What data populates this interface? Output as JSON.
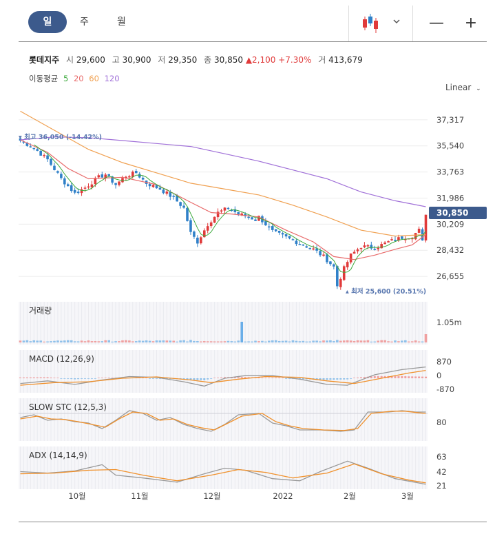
{
  "toolbar": {
    "periods": [
      "일",
      "주",
      "월"
    ],
    "active_period": "일",
    "chart_type_icon": "candlestick-icon",
    "zoom_out_label": "—",
    "zoom_in_label": "+"
  },
  "quote": {
    "name": "롯데지주",
    "open_label": "시",
    "open": "29,600",
    "high_label": "고",
    "high": "30,900",
    "low_label": "저",
    "low": "29,350",
    "close_label": "종",
    "close": "30,850",
    "change": "▲2,100",
    "change_pct": "+7.30%",
    "volume_label": "거",
    "volume": "413,679"
  },
  "moving_average": {
    "label": "이동평균",
    "periods": [
      {
        "value": "5",
        "color": "#3daa3d"
      },
      {
        "value": "20",
        "color": "#e86a6a"
      },
      {
        "value": "60",
        "color": "#f0a050"
      },
      {
        "value": "120",
        "color": "#a070d8"
      }
    ]
  },
  "scale_mode": "Linear",
  "colors": {
    "up": "#e03a3a",
    "down": "#2f80c8",
    "accent": "#3c5a8c"
  },
  "chart_data": [
    {
      "type": "line",
      "subtype": "candlestick",
      "y_ticks": [
        "37,317",
        "35,540",
        "33,763",
        "31,986",
        "30,209",
        "28,432",
        "26,655"
      ],
      "ylim": [
        25300,
        38200
      ],
      "x_ticks": [
        "10월",
        "11월",
        "12월",
        "2022",
        "2월",
        "3월"
      ],
      "last_price_tag": "30,850",
      "high_annotation": "최고 36,050 (-14.42%)",
      "low_annotation": "최저 25,600 (20.51%)",
      "anchors": [
        {
          "i": 0,
          "p": 35900
        },
        {
          "i": 4,
          "p": 35400
        },
        {
          "i": 8,
          "p": 34600
        },
        {
          "i": 12,
          "p": 33300
        },
        {
          "i": 16,
          "p": 32300
        },
        {
          "i": 19,
          "p": 32700
        },
        {
          "i": 23,
          "p": 33400
        },
        {
          "i": 25,
          "p": 33600
        },
        {
          "i": 28,
          "p": 32900
        },
        {
          "i": 31,
          "p": 33500
        },
        {
          "i": 34,
          "p": 33700
        },
        {
          "i": 37,
          "p": 33000
        },
        {
          "i": 41,
          "p": 32600
        },
        {
          "i": 45,
          "p": 32000
        },
        {
          "i": 48,
          "p": 31300
        },
        {
          "i": 50,
          "p": 29600
        },
        {
          "i": 52,
          "p": 29000
        },
        {
          "i": 55,
          "p": 30200
        },
        {
          "i": 58,
          "p": 31000
        },
        {
          "i": 61,
          "p": 31300
        },
        {
          "i": 64,
          "p": 30900
        },
        {
          "i": 67,
          "p": 30700
        },
        {
          "i": 69,
          "p": 30500
        },
        {
          "i": 70,
          "p": 30700
        },
        {
          "i": 74,
          "p": 29700
        },
        {
          "i": 78,
          "p": 29300
        },
        {
          "i": 82,
          "p": 28900
        },
        {
          "i": 86,
          "p": 28500
        },
        {
          "i": 89,
          "p": 28000
        },
        {
          "i": 92,
          "p": 27300
        },
        {
          "i": 93,
          "p": 26000
        },
        {
          "i": 95,
          "p": 27200
        },
        {
          "i": 97,
          "p": 28100
        },
        {
          "i": 100,
          "p": 28700
        },
        {
          "i": 104,
          "p": 28600
        },
        {
          "i": 108,
          "p": 29000
        },
        {
          "i": 112,
          "p": 29300
        },
        {
          "i": 115,
          "p": 29400
        },
        {
          "i": 117,
          "p": 29800
        },
        {
          "i": 118,
          "p": 29000
        },
        {
          "i": 119,
          "p": 30850
        }
      ],
      "ma120": [
        [
          0,
          35950
        ],
        [
          10,
          36150
        ],
        [
          20,
          36100
        ],
        [
          30,
          35900
        ],
        [
          40,
          35700
        ],
        [
          50,
          35500
        ],
        [
          60,
          35000
        ],
        [
          70,
          34500
        ],
        [
          80,
          33900
        ],
        [
          90,
          33300
        ],
        [
          100,
          32400
        ],
        [
          110,
          31800
        ],
        [
          119,
          31400
        ]
      ],
      "ma60": [
        [
          0,
          37900
        ],
        [
          10,
          36600
        ],
        [
          20,
          35300
        ],
        [
          30,
          34400
        ],
        [
          40,
          33700
        ],
        [
          50,
          33000
        ],
        [
          60,
          32600
        ],
        [
          70,
          32200
        ],
        [
          80,
          31500
        ],
        [
          90,
          30700
        ],
        [
          100,
          29800
        ],
        [
          110,
          29400
        ],
        [
          119,
          29500
        ]
      ],
      "ma20": [
        [
          0,
          35950
        ],
        [
          8,
          35100
        ],
        [
          14,
          34000
        ],
        [
          20,
          33300
        ],
        [
          30,
          33400
        ],
        [
          40,
          32900
        ],
        [
          50,
          31700
        ],
        [
          56,
          31000
        ],
        [
          62,
          30900
        ],
        [
          70,
          30700
        ],
        [
          78,
          29800
        ],
        [
          86,
          29000
        ],
        [
          92,
          28000
        ],
        [
          98,
          27800
        ],
        [
          104,
          28100
        ],
        [
          110,
          28500
        ],
        [
          115,
          28800
        ],
        [
          119,
          29500
        ]
      ]
    },
    {
      "type": "bar",
      "title": "거래량",
      "y_ticks": [
        "1.05m"
      ],
      "spike_index": 65,
      "spike_value": "1.05m",
      "last_value": "413,679"
    },
    {
      "type": "line",
      "title": "MACD (12,26,9)",
      "y_ticks": [
        "870",
        "0",
        "-870"
      ],
      "macd": [
        [
          0,
          -300
        ],
        [
          8,
          -150
        ],
        [
          16,
          -350
        ],
        [
          24,
          -100
        ],
        [
          32,
          100
        ],
        [
          40,
          50
        ],
        [
          48,
          -200
        ],
        [
          54,
          -450
        ],
        [
          60,
          0
        ],
        [
          66,
          150
        ],
        [
          74,
          150
        ],
        [
          82,
          -50
        ],
        [
          90,
          -350
        ],
        [
          96,
          -400
        ],
        [
          104,
          200
        ],
        [
          112,
          500
        ],
        [
          119,
          650
        ]
      ],
      "signal": [
        [
          0,
          -400
        ],
        [
          10,
          -250
        ],
        [
          20,
          -200
        ],
        [
          30,
          0
        ],
        [
          40,
          80
        ],
        [
          50,
          -100
        ],
        [
          56,
          -250
        ],
        [
          64,
          -50
        ],
        [
          72,
          100
        ],
        [
          82,
          50
        ],
        [
          90,
          -150
        ],
        [
          98,
          -300
        ],
        [
          106,
          0
        ],
        [
          114,
          300
        ],
        [
          119,
          450
        ]
      ]
    },
    {
      "type": "line",
      "title": "SLOW STC (12,5,3)",
      "y_ticks": [
        "80"
      ],
      "k": [
        [
          0,
          65
        ],
        [
          4,
          75
        ],
        [
          8,
          55
        ],
        [
          12,
          60
        ],
        [
          16,
          50
        ],
        [
          20,
          45
        ],
        [
          24,
          25
        ],
        [
          28,
          55
        ],
        [
          32,
          90
        ],
        [
          36,
          80
        ],
        [
          40,
          55
        ],
        [
          44,
          65
        ],
        [
          48,
          40
        ],
        [
          52,
          25
        ],
        [
          56,
          15
        ],
        [
          60,
          40
        ],
        [
          64,
          75
        ],
        [
          70,
          80
        ],
        [
          74,
          45
        ],
        [
          78,
          35
        ],
        [
          82,
          20
        ],
        [
          88,
          20
        ],
        [
          94,
          15
        ],
        [
          98,
          20
        ],
        [
          102,
          85
        ],
        [
          108,
          85
        ],
        [
          112,
          90
        ],
        [
          116,
          85
        ],
        [
          119,
          85
        ]
      ],
      "d": [
        [
          0,
          60
        ],
        [
          5,
          70
        ],
        [
          9,
          60
        ],
        [
          13,
          58
        ],
        [
          17,
          50
        ],
        [
          21,
          40
        ],
        [
          25,
          30
        ],
        [
          29,
          60
        ],
        [
          33,
          85
        ],
        [
          37,
          80
        ],
        [
          41,
          55
        ],
        [
          45,
          60
        ],
        [
          49,
          40
        ],
        [
          53,
          28
        ],
        [
          57,
          20
        ],
        [
          61,
          45
        ],
        [
          65,
          70
        ],
        [
          71,
          80
        ],
        [
          75,
          50
        ],
        [
          79,
          35
        ],
        [
          83,
          25
        ],
        [
          89,
          20
        ],
        [
          95,
          18
        ],
        [
          99,
          25
        ],
        [
          103,
          80
        ],
        [
          109,
          88
        ],
        [
          113,
          88
        ],
        [
          117,
          82
        ],
        [
          119,
          80
        ]
      ]
    },
    {
      "type": "line",
      "title": "ADX (14,14,9)",
      "y_ticks": [
        "63",
        "42",
        "21"
      ],
      "adx": [
        [
          0,
          35
        ],
        [
          8,
          33
        ],
        [
          16,
          36
        ],
        [
          24,
          45
        ],
        [
          28,
          30
        ],
        [
          36,
          26
        ],
        [
          46,
          20
        ],
        [
          54,
          32
        ],
        [
          60,
          40
        ],
        [
          66,
          37
        ],
        [
          74,
          25
        ],
        [
          82,
          22
        ],
        [
          88,
          35
        ],
        [
          96,
          50
        ],
        [
          102,
          40
        ],
        [
          110,
          25
        ],
        [
          119,
          17
        ]
      ],
      "signal": [
        [
          0,
          32
        ],
        [
          10,
          33
        ],
        [
          20,
          37
        ],
        [
          28,
          38
        ],
        [
          36,
          30
        ],
        [
          46,
          22
        ],
        [
          56,
          30
        ],
        [
          64,
          38
        ],
        [
          72,
          34
        ],
        [
          80,
          26
        ],
        [
          90,
          33
        ],
        [
          98,
          46
        ],
        [
          106,
          32
        ],
        [
          114,
          23
        ],
        [
          119,
          19
        ]
      ]
    }
  ]
}
